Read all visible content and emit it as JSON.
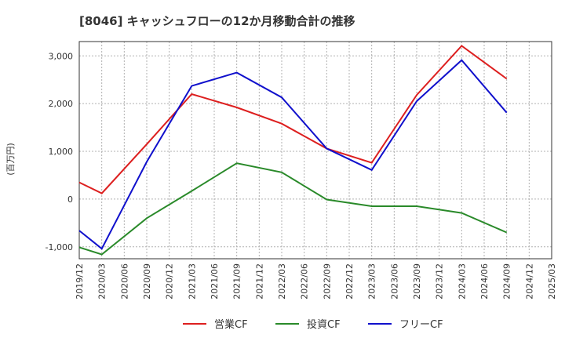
{
  "chart_data": {
    "type": "line",
    "title": "[8046]  キャッシュフローの12か月移動合計の推移",
    "ylabel": "(百万円)",
    "xlabel": "",
    "ylim": [
      -1250,
      3300
    ],
    "yticks": [
      -1000,
      0,
      1000,
      2000,
      3000
    ],
    "ytick_labels": [
      "-1,000",
      "0",
      "1,000",
      "2,000",
      "3,000"
    ],
    "xticks": [
      "2019/12",
      "2020/03",
      "2020/06",
      "2020/09",
      "2020/12",
      "2021/03",
      "2021/06",
      "2021/09",
      "2021/12",
      "2022/03",
      "2022/06",
      "2022/09",
      "2022/12",
      "2023/03",
      "2023/06",
      "2023/09",
      "2023/12",
      "2024/03",
      "2024/06",
      "2024/09",
      "2024/12",
      "2025/03"
    ],
    "grid": true,
    "legend_position": "bottom",
    "series": [
      {
        "name": "営業CF",
        "color": "#dd1f1f",
        "points": [
          {
            "x": "2019/12",
            "y": 350
          },
          {
            "x": "2020/03",
            "y": 120
          },
          {
            "x": "2020/09",
            "y": 1150
          },
          {
            "x": "2021/03",
            "y": 2200
          },
          {
            "x": "2021/09",
            "y": 1920
          },
          {
            "x": "2022/03",
            "y": 1580
          },
          {
            "x": "2022/09",
            "y": 1060
          },
          {
            "x": "2023/03",
            "y": 760
          },
          {
            "x": "2023/09",
            "y": 2180
          },
          {
            "x": "2024/03",
            "y": 3210
          },
          {
            "x": "2024/09",
            "y": 2520
          }
        ]
      },
      {
        "name": "投資CF",
        "color": "#2a8a2a",
        "points": [
          {
            "x": "2019/12",
            "y": -1010
          },
          {
            "x": "2020/03",
            "y": -1160
          },
          {
            "x": "2020/09",
            "y": -400
          },
          {
            "x": "2021/03",
            "y": 170
          },
          {
            "x": "2021/09",
            "y": 750
          },
          {
            "x": "2022/03",
            "y": 560
          },
          {
            "x": "2022/09",
            "y": -10
          },
          {
            "x": "2023/03",
            "y": -150
          },
          {
            "x": "2023/09",
            "y": -150
          },
          {
            "x": "2024/03",
            "y": -290
          },
          {
            "x": "2024/09",
            "y": -700
          }
        ]
      },
      {
        "name": "フリーCF",
        "color": "#1010cc",
        "points": [
          {
            "x": "2019/12",
            "y": -660
          },
          {
            "x": "2020/03",
            "y": -1040
          },
          {
            "x": "2020/09",
            "y": 780
          },
          {
            "x": "2021/03",
            "y": 2370
          },
          {
            "x": "2021/09",
            "y": 2650
          },
          {
            "x": "2022/03",
            "y": 2130
          },
          {
            "x": "2022/09",
            "y": 1060
          },
          {
            "x": "2023/03",
            "y": 610
          },
          {
            "x": "2023/09",
            "y": 2050
          },
          {
            "x": "2024/03",
            "y": 2910
          },
          {
            "x": "2024/09",
            "y": 1810
          }
        ]
      }
    ]
  }
}
